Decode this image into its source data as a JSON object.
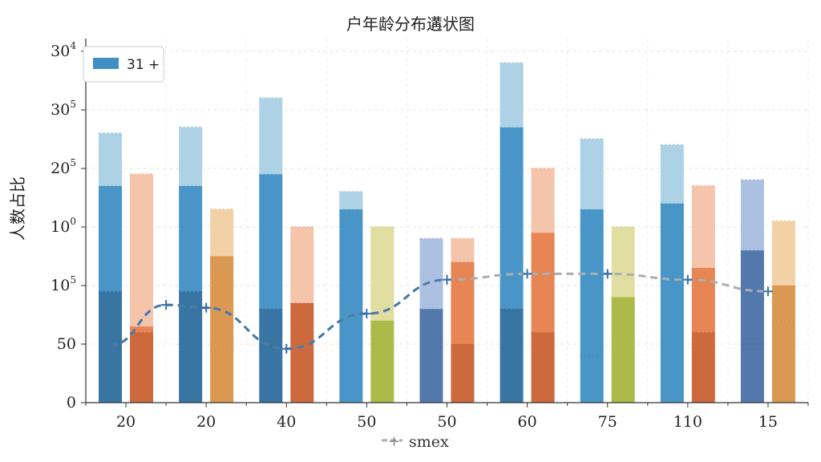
{
  "chart_data": {
    "type": "bar",
    "title": "户年龄分布遘状图",
    "ylabel": "人数占比",
    "xlabel": "",
    "categories": [
      "20",
      "20",
      "40",
      "50",
      "50",
      "60",
      "75",
      "110",
      "15"
    ],
    "yticks": [
      {
        "base": "0",
        "exp": ""
      },
      {
        "base": "50",
        "exp": ""
      },
      {
        "base": "10",
        "exp": "5"
      },
      {
        "base": "10",
        "exp": "0"
      },
      {
        "base": "20",
        "exp": "5"
      },
      {
        "base": "30",
        "exp": "5"
      },
      {
        "base": "30",
        "exp": "4"
      }
    ],
    "ylim": [
      0,
      6
    ],
    "grid": true,
    "legend": {
      "position": "top-left",
      "entries": [
        "31 +"
      ]
    },
    "bottom_legend": "smex",
    "series": [
      {
        "name": "31 +",
        "stacks": [
          [
            1.9,
            1.8,
            0.9
          ],
          [
            1.9,
            1.8,
            1.0
          ],
          [
            1.6,
            2.3,
            1.3
          ],
          [
            0,
            3.3,
            0.3
          ],
          [
            1.6,
            0,
            1.2
          ],
          [
            1.6,
            3.1,
            1.1
          ],
          [
            0.8,
            2.5,
            1.2
          ],
          [
            3.4,
            0,
            1.0
          ],
          [
            1.0,
            1.6,
            1.2
          ]
        ]
      },
      {
        "name": "",
        "stacks": [
          [
            1.2,
            0.1,
            2.6
          ],
          [
            0.9,
            1.6,
            0.8
          ],
          [
            1.7,
            0,
            1.3
          ],
          [
            1.2,
            0.2,
            1.6
          ],
          [
            1.0,
            1.4,
            0.4
          ],
          [
            1.2,
            1.7,
            1.1
          ],
          [
            1.8,
            0,
            1.2
          ],
          [
            1.2,
            1.1,
            1.4
          ],
          [
            1.4,
            0.6,
            1.1
          ]
        ]
      }
    ],
    "line": {
      "name": "smex",
      "values": [
        0.98,
        1.67,
        1.62,
        0.92,
        1.52,
        2.1,
        2.2,
        2.2,
        2.1,
        1.9
      ],
      "x_positions": [
        0,
        0.5,
        1,
        2,
        3,
        4,
        5,
        6,
        7,
        8
      ]
    },
    "colors": {
      "blue": "#3f8fc4",
      "blue_light": "#a9cfe4",
      "blue_dark": "#2d6e9e",
      "orange": "#e67e4b",
      "orange_light": "#f3c1a6",
      "orange_dark": "#c96234",
      "olive": "#a8b640",
      "olive_light": "#dedc9c",
      "tan": "#d9924a",
      "tan_light": "#f2cfa2",
      "navy": "#4a72a8",
      "navy_light": "#a8bde0",
      "line_blue": "#3870a8",
      "line_gray": "#a9aeb2"
    }
  }
}
